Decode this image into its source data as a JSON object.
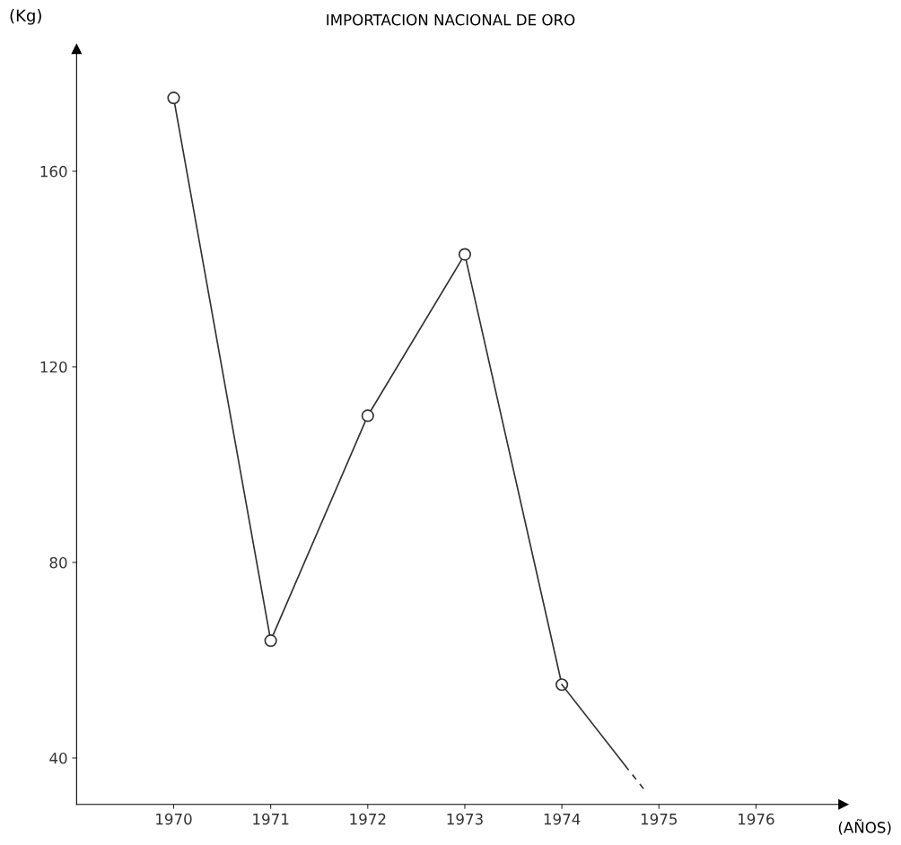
{
  "chart_data": {
    "type": "line",
    "title": "IMPORTACION NACIONAL DE ORO",
    "xlabel": "(AÑOS)",
    "ylabel": "(Kg)",
    "xlim": [
      1969,
      1976.9
    ],
    "xticks": [
      1970,
      1971,
      1972,
      1973,
      1974,
      1975,
      1976
    ],
    "ylim": [
      30.5,
      185
    ],
    "yticks": [
      40,
      80,
      120,
      160
    ],
    "grid": false,
    "legend": false,
    "series": [
      {
        "color": "#333333",
        "x": [
          1970,
          1971,
          1972,
          1973,
          1974
        ],
        "values": [
          175,
          64,
          110,
          143,
          55
        ],
        "marker": "circle",
        "line_style": "solid"
      },
      {
        "color": "#333333",
        "x": [
          1974,
          1974.65
        ],
        "values": [
          55,
          38.5
        ],
        "marker": "none",
        "line_style": "solid"
      },
      {
        "color": "#333333",
        "x": [
          1974.65,
          1974.87
        ],
        "values": [
          38.5,
          33
        ],
        "marker": "none",
        "line_style": "dashed"
      }
    ]
  }
}
